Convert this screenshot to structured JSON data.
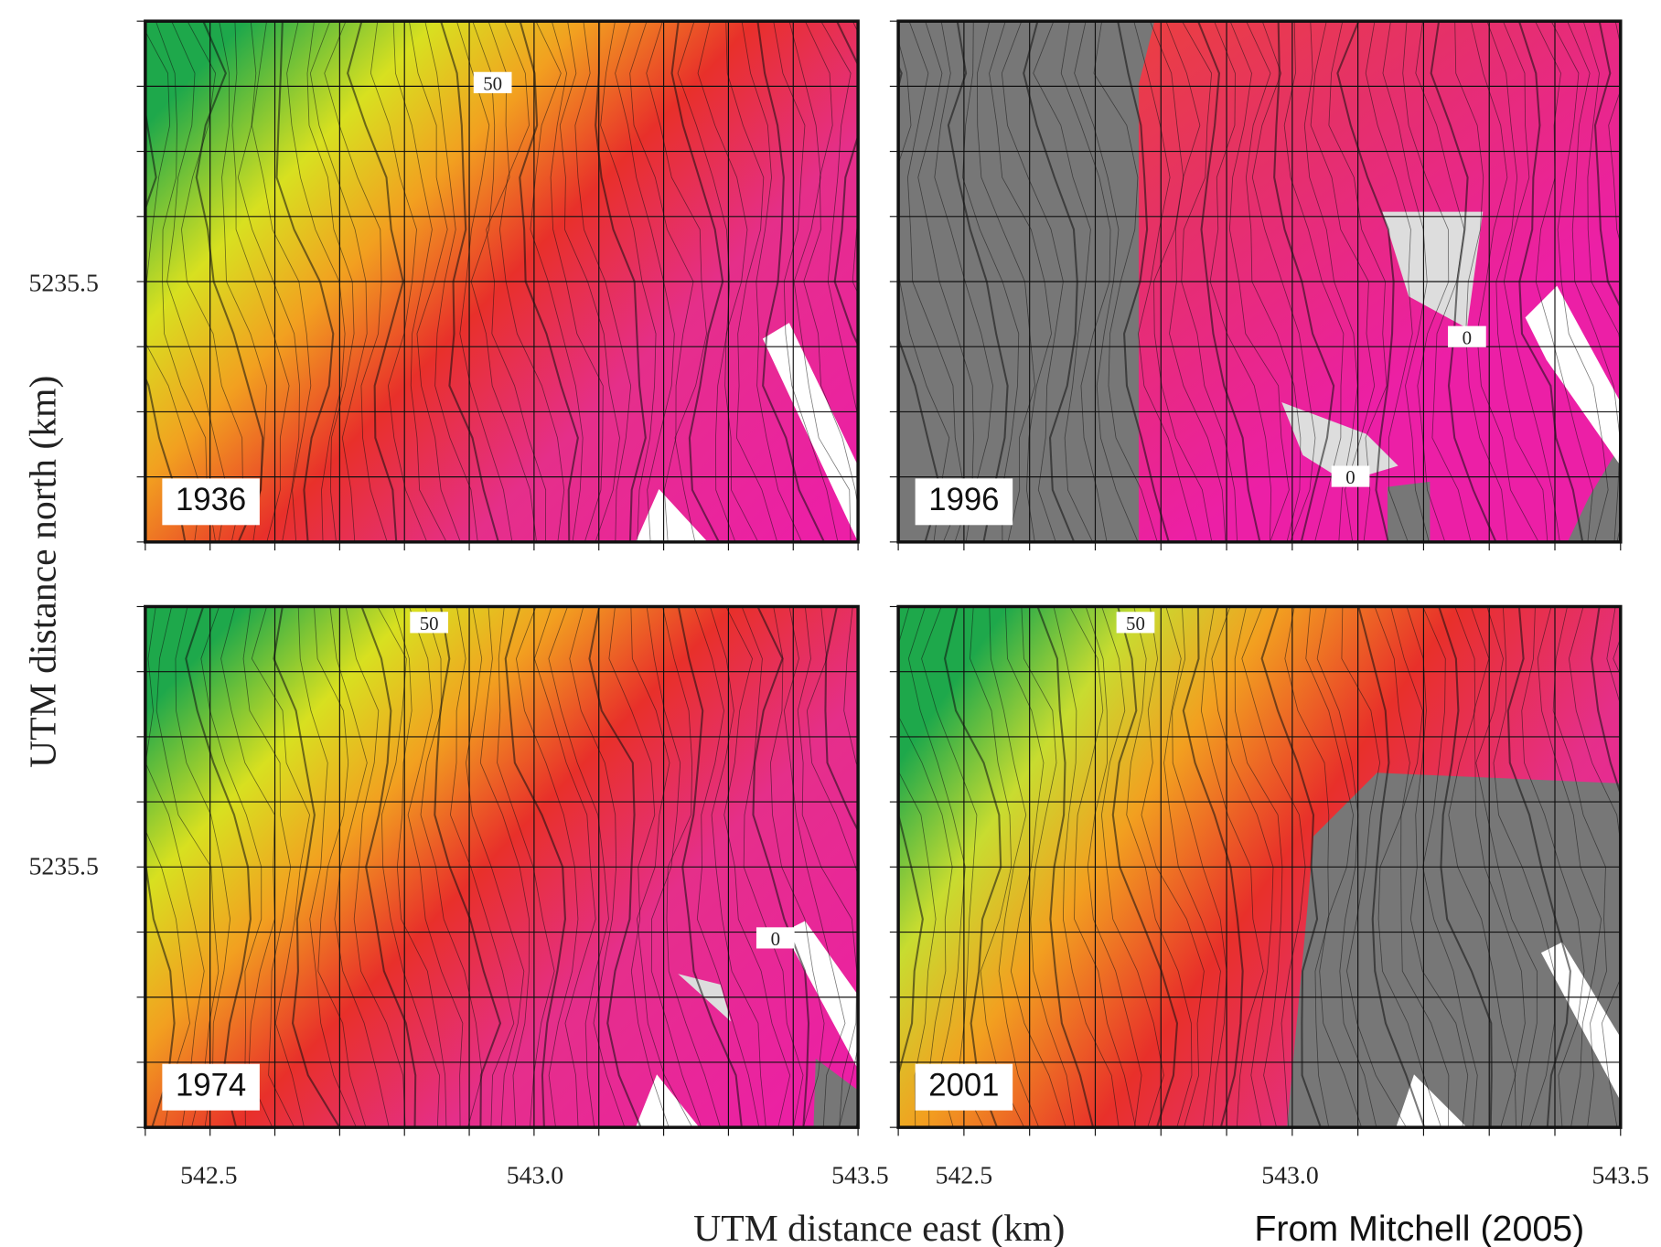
{
  "panels": [
    {
      "label": "1936",
      "contour_labels": [
        "50"
      ]
    },
    {
      "label": "1996",
      "contour_labels": [
        "0",
        "0"
      ]
    },
    {
      "label": "1974",
      "contour_labels": [
        "50",
        "0"
      ]
    },
    {
      "label": "2001",
      "contour_labels": [
        "50"
      ]
    }
  ],
  "x_axis": {
    "title": "UTM distance east (km)",
    "ticks_left": [
      "542.5",
      "543.0",
      "543.5"
    ],
    "ticks_right": [
      "542.5",
      "543.0",
      "543.5"
    ]
  },
  "y_axis": {
    "title": "UTM distance north (km)",
    "ticks_top": [
      "5235.5"
    ],
    "ticks_bottom": [
      "5235.5"
    ]
  },
  "credit": "From Mitchell (2005)"
}
